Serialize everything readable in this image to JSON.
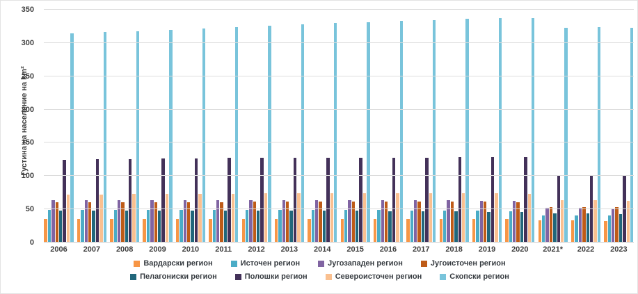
{
  "chart_data": {
    "type": "bar",
    "title": "",
    "ylabel": "Густина на население на km²",
    "xlabel": "",
    "ylim": [
      0,
      350
    ],
    "ytick_step": 50,
    "yticks": [
      0,
      50,
      100,
      150,
      200,
      250,
      300,
      350
    ],
    "grid": true,
    "legend_position": "bottom",
    "categories": [
      "2006",
      "2007",
      "2008",
      "2009",
      "2010",
      "2011",
      "2012",
      "2013",
      "2014",
      "2015",
      "2016",
      "2017",
      "2018",
      "2019",
      "2020",
      "2021*",
      "2022",
      "2023"
    ],
    "series": [
      {
        "name": "Вардарски регион",
        "color": "#F79646",
        "values": [
          36,
          36,
          36,
          36,
          36,
          36,
          36,
          36,
          36,
          36,
          36,
          36,
          36,
          36,
          36,
          33,
          33,
          32
        ]
      },
      {
        "name": "Источен регион",
        "color": "#4BACC6",
        "values": [
          49,
          49,
          49,
          49,
          49,
          49,
          49,
          49,
          49,
          49,
          49,
          48,
          48,
          48,
          47,
          41,
          41,
          41
        ]
      },
      {
        "name": "Југозападен регион",
        "color": "#8064A2",
        "values": [
          64,
          64,
          64,
          64,
          64,
          64,
          64,
          64,
          64,
          64,
          64,
          64,
          64,
          63,
          63,
          52,
          52,
          51
        ]
      },
      {
        "name": "Југоисточен регион",
        "color": "#BE5B17",
        "values": [
          61,
          61,
          61,
          61,
          61,
          61,
          62,
          62,
          62,
          62,
          62,
          62,
          62,
          62,
          61,
          53,
          53,
          53
        ]
      },
      {
        "name": "Пелагониски регион",
        "color": "#21677B",
        "values": [
          48,
          48,
          48,
          48,
          48,
          48,
          48,
          48,
          48,
          48,
          47,
          47,
          47,
          46,
          46,
          44,
          44,
          43
        ]
      },
      {
        "name": "Полошки регион",
        "color": "#433159",
        "values": [
          124,
          125,
          125,
          126,
          126,
          127,
          127,
          127,
          128,
          128,
          128,
          128,
          129,
          129,
          129,
          100,
          101,
          101
        ]
      },
      {
        "name": "Североисточен регион",
        "color": "#FAC090",
        "values": [
          72,
          72,
          73,
          73,
          73,
          73,
          74,
          74,
          74,
          74,
          74,
          74,
          74,
          74,
          73,
          64,
          64,
          63
        ]
      },
      {
        "name": "Скопски регион",
        "color": "#79C4DB",
        "values": [
          315,
          317,
          318,
          320,
          322,
          324,
          326,
          328,
          330,
          331,
          333,
          334,
          336,
          337,
          338,
          323,
          324,
          323
        ]
      }
    ],
    "legend_rows": [
      [
        0,
        1,
        2,
        3
      ],
      [
        4,
        5,
        6,
        7
      ]
    ]
  }
}
